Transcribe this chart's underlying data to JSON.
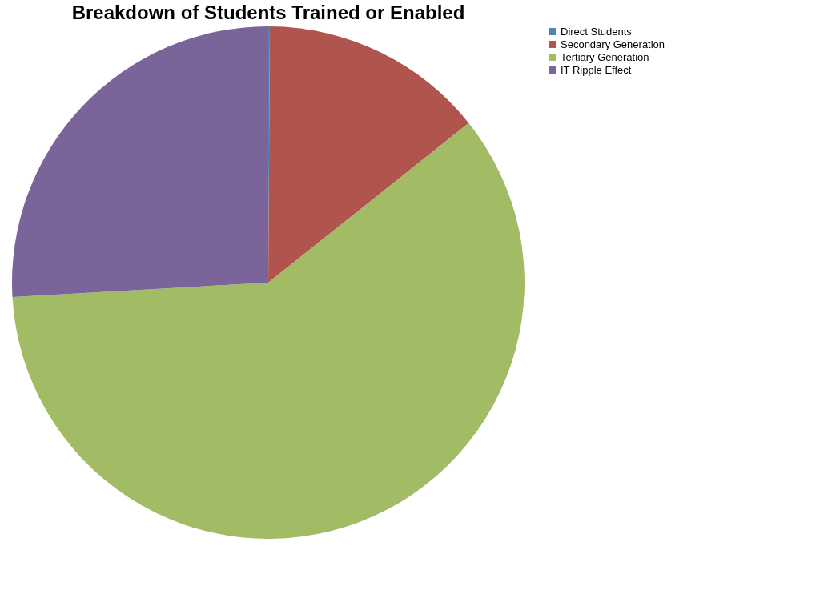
{
  "chart_data": {
    "type": "pie",
    "title": "Breakdown of Students Trained or Enabled",
    "categories": [
      "Direct Students",
      "Secondary Generation",
      "Tertiary Generation",
      "IT Ripple Effect"
    ],
    "values": [
      0.1,
      14.2,
      59.8,
      25.9
    ],
    "colors": [
      "#4f81bd",
      "#b0554d",
      "#a2bb65",
      "#7a649a"
    ],
    "legend": "right"
  }
}
